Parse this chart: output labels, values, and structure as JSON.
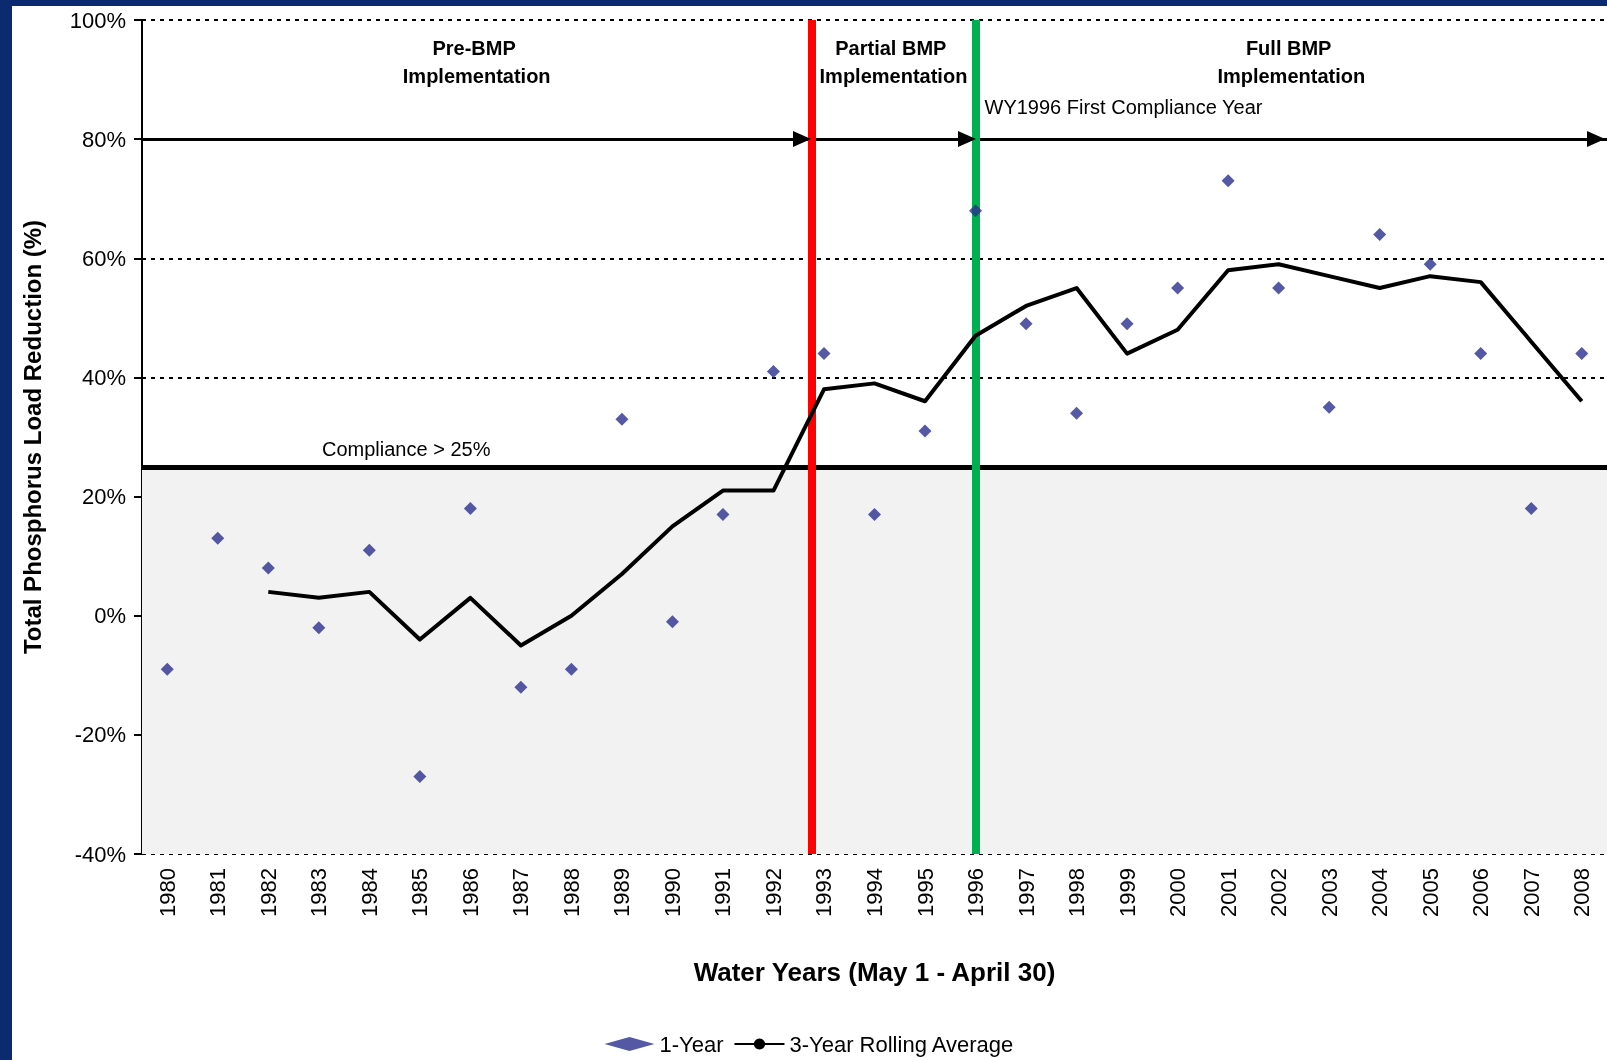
{
  "chart_data": {
    "type": "scatter",
    "xlabel": "Water Years (May 1 - April 30)",
    "ylabel": "Total Phosphorus Load Reduction (%)",
    "x": [
      1980,
      1981,
      1982,
      1983,
      1984,
      1985,
      1986,
      1987,
      1988,
      1989,
      1990,
      1991,
      1992,
      1993,
      1994,
      1995,
      1996,
      1997,
      1998,
      1999,
      2000,
      2001,
      2002,
      2003,
      2004,
      2005,
      2006,
      2007,
      2008
    ],
    "series": [
      {
        "name": "1-Year",
        "marker": "diamond",
        "color": "#2b2f8f",
        "values": [
          -9,
          13,
          8,
          -2,
          11,
          -27,
          18,
          -12,
          -9,
          33,
          -1,
          17,
          41,
          44,
          17,
          31,
          68,
          49,
          34,
          49,
          55,
          73,
          55,
          35,
          64,
          59,
          44,
          18,
          44
        ]
      },
      {
        "name": "3-Year Rolling Average",
        "type": "line",
        "marker": "none",
        "color": "#000000",
        "values": [
          null,
          null,
          4,
          3,
          4,
          -4,
          3,
          -5,
          0,
          7,
          15,
          21,
          21,
          38,
          39,
          36,
          47,
          52,
          55,
          44,
          48,
          58,
          59,
          57,
          55,
          57,
          56,
          46,
          36
        ]
      }
    ],
    "xlim": [
      1979.5,
      2008.5
    ],
    "xticks": [
      1980,
      1981,
      1982,
      1983,
      1984,
      1985,
      1986,
      1987,
      1988,
      1989,
      1990,
      1991,
      1992,
      1993,
      1994,
      1995,
      1996,
      1997,
      1998,
      1999,
      2000,
      2001,
      2002,
      2003,
      2004,
      2005,
      2006,
      2007,
      2008
    ],
    "ylim": [
      -40,
      100
    ],
    "yticks": [
      {
        "value": -40,
        "label": "-40%"
      },
      {
        "value": -20,
        "label": "-20%"
      },
      {
        "value": 0,
        "label": "0%"
      },
      {
        "value": 20,
        "label": "20%"
      },
      {
        "value": 40,
        "label": "40%"
      },
      {
        "value": 60,
        "label": "60%"
      },
      {
        "value": 80,
        "label": "80%"
      },
      {
        "value": 100,
        "label": "100%"
      }
    ],
    "grid": "y",
    "legend": "bottom",
    "ref_lines": [
      {
        "axis": "y",
        "value": 25,
        "label": "Compliance > 25%",
        "color": "#000000"
      },
      {
        "axis": "y",
        "value": 80,
        "label": null,
        "color": "#000000"
      },
      {
        "axis": "x",
        "value": 1992.75,
        "label": null,
        "color": "#ff0000"
      },
      {
        "axis": "x",
        "value": 1996,
        "label": "WY1996 First Compliance Year",
        "color": "#00b050"
      }
    ],
    "bands": [
      {
        "axis": "y",
        "from": -40,
        "to": 25,
        "label": null,
        "color": "#f2f2f2"
      }
    ],
    "annotations": [
      "Pre-BMP Implementation",
      "Partial BMP Implementation",
      "Full BMP Implementation"
    ]
  }
}
